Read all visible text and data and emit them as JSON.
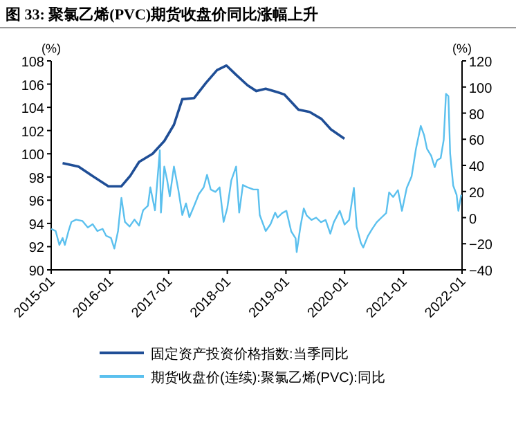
{
  "chart_data": {
    "type": "line",
    "title": "图 33: 聚氯乙烯(PVC)期货收盘价同比涨幅上升",
    "ylabel": "(%)",
    "y2label": "(%)",
    "legend": "bottom",
    "grid": false,
    "line_style": "solid",
    "marker": "none",
    "xlim": [
      "2015-01-01",
      "2022-01-01"
    ],
    "xticks": [
      {
        "value": "2015-01-01",
        "label": "2015-01"
      },
      {
        "value": "2016-01-01",
        "label": "2016-01"
      },
      {
        "value": "2017-01-01",
        "label": "2017-01"
      },
      {
        "value": "2018-01-01",
        "label": "2018-01"
      },
      {
        "value": "2019-01-01",
        "label": "2019-01"
      },
      {
        "value": "2020-01-01",
        "label": "2020-01"
      },
      {
        "value": "2021-01-01",
        "label": "2021-01"
      },
      {
        "value": "2022-01-01",
        "label": "2022-01"
      }
    ],
    "ylim": [
      90,
      108
    ],
    "yticks": [
      90,
      92,
      94,
      96,
      98,
      100,
      102,
      104,
      106,
      108
    ],
    "y2lim": [
      -40,
      120
    ],
    "y2ticks": [
      {
        "value": -40,
        "label": "−40"
      },
      {
        "value": -20,
        "label": "−20"
      },
      0,
      20,
      40,
      60,
      80,
      100,
      120
    ],
    "series": [
      {
        "name": "固定资产投资价格指数:当季同比",
        "color": "#1f4e96",
        "x": [
          "2015-03-13",
          "2015-06-20",
          "2015-09-13",
          "2015-12-23",
          "2016-03-13",
          "2016-05-07",
          "2016-07-01",
          "2016-09-23",
          "2016-12-05",
          "2017-02-03",
          "2017-03-27",
          "2017-06-09",
          "2017-08-21",
          "2017-10-29",
          "2017-12-27",
          "2018-02-25",
          "2018-05-07",
          "2018-07-01",
          "2018-08-28",
          "2018-11-10",
          "2018-12-23",
          "2019-03-20",
          "2019-05-28",
          "2019-08-10",
          "2019-10-08",
          "2019-12-31"
        ],
        "values": [
          99.2,
          98.9,
          98.1,
          97.2,
          97.2,
          98.1,
          99.3,
          100.0,
          101.1,
          102.5,
          104.7,
          104.8,
          106.1,
          107.2,
          107.6,
          106.8,
          105.9,
          105.4,
          105.6,
          105.3,
          105.1,
          103.8,
          103.6,
          103.0,
          102.1,
          101.3
        ]
      },
      {
        "name": "期货收盘价(连续):聚氯乙烯(PVC):同比",
        "color": "#5bc0ee",
        "axis": "y2",
        "x": [
          "2015-01-01",
          "2015-01-29",
          "2015-02-21",
          "2015-03-13",
          "2015-03-27",
          "2015-04-19",
          "2015-05-07",
          "2015-06-05",
          "2015-07-15",
          "2015-08-17",
          "2015-09-16",
          "2015-10-15",
          "2015-11-17",
          "2015-12-09",
          "2016-01-08",
          "2016-01-29",
          "2016-02-21",
          "2016-03-13",
          "2016-04-04",
          "2016-05-03",
          "2016-06-02",
          "2016-07-01",
          "2016-07-26",
          "2016-08-25",
          "2016-09-09",
          "2016-10-08",
          "2016-11-07",
          "2016-11-14",
          "2016-12-05",
          "2016-12-23",
          "2017-01-08",
          "2017-02-03",
          "2017-03-02",
          "2017-03-27",
          "2017-04-19",
          "2017-05-10",
          "2017-06-09",
          "2017-07-08",
          "2017-08-07",
          "2017-08-28",
          "2017-09-20",
          "2017-10-19",
          "2017-11-14",
          "2017-12-09",
          "2018-01-01",
          "2018-01-26",
          "2018-02-25",
          "2018-03-16",
          "2018-04-08",
          "2018-05-07",
          "2018-06-13",
          "2018-07-11",
          "2018-07-22",
          "2018-08-28",
          "2018-09-27",
          "2018-10-26",
          "2018-11-10",
          "2018-12-09",
          "2019-01-04",
          "2019-02-03",
          "2019-03-02",
          "2019-03-09",
          "2019-04-01",
          "2019-04-22",
          "2019-05-10",
          "2019-06-09",
          "2019-07-08",
          "2019-08-07",
          "2019-09-05",
          "2019-10-04",
          "2019-10-26",
          "2019-12-02",
          "2020-01-01",
          "2020-01-29",
          "2020-02-28",
          "2020-03-16",
          "2020-04-11",
          "2020-04-26",
          "2020-05-25",
          "2020-06-20",
          "2020-07-19",
          "2020-08-17",
          "2020-09-16",
          "2020-10-04",
          "2020-10-29",
          "2020-11-28",
          "2020-12-23",
          "2021-01-22",
          "2021-02-21",
          "2021-03-20",
          "2021-04-19",
          "2021-05-10",
          "2021-05-28",
          "2021-06-23",
          "2021-07-15",
          "2021-07-29",
          "2021-08-21",
          "2021-09-09",
          "2021-09-23",
          "2021-10-08",
          "2021-10-19",
          "2021-11-07",
          "2021-11-28",
          "2021-12-09",
          "2021-12-27"
        ],
        "values": [
          -8.6,
          -10.3,
          -20.9,
          -15.6,
          -20.9,
          -10.3,
          -3.3,
          -1.5,
          -2.6,
          -7.5,
          -5.0,
          -10.3,
          -8.6,
          -13.9,
          -15.6,
          -23.7,
          -10.3,
          15.1,
          -3.3,
          -6.8,
          -1.5,
          -6.1,
          5.6,
          9.1,
          23.2,
          5.6,
          51.5,
          3.8,
          39.1,
          28.5,
          16.2,
          39.1,
          21.5,
          2.0,
          10.9,
          0.3,
          9.1,
          18.0,
          23.2,
          32.8,
          21.5,
          19.7,
          23.2,
          -3.3,
          7.3,
          28.5,
          39.1,
          3.8,
          25.0,
          23.2,
          21.5,
          21.5,
          2.0,
          -10.3,
          -5.0,
          3.8,
          0,
          3.5,
          5.2,
          -10.6,
          -15.8,
          -26.4,
          -7,
          7,
          1.7,
          -1.8,
          0,
          -3.5,
          -1.8,
          -12.3,
          -3.5,
          5.2,
          -5.3,
          -1.8,
          22.8,
          -7,
          -19.3,
          -22.9,
          -14.1,
          -8.8,
          -3.5,
          0,
          3.5,
          19.3,
          15.8,
          21,
          5.2,
          22.8,
          31.5,
          52.6,
          70.2,
          63.1,
          52.6,
          47.3,
          38.6,
          43.8,
          45.6,
          59.6,
          94.7,
          93,
          49.1,
          24.5,
          17.5,
          5.2,
          17.5
        ]
      }
    ]
  }
}
